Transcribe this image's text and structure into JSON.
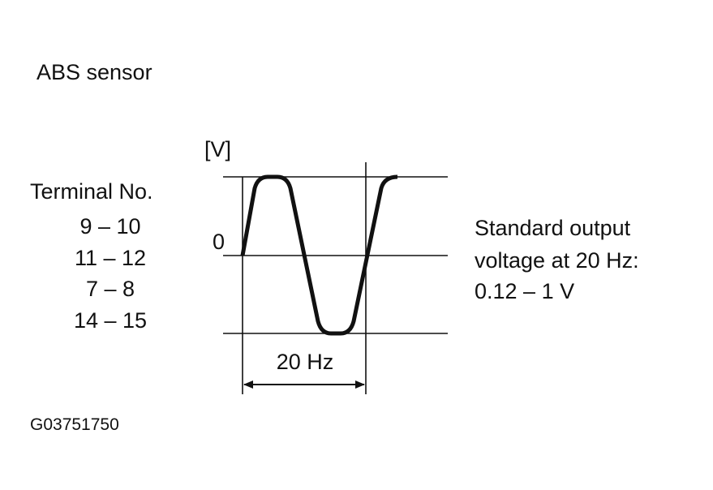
{
  "title": "ABS sensor",
  "terminals": {
    "header": "Terminal No.",
    "rows": [
      "9 – 10",
      "11 – 12",
      "7 – 8",
      "14 – 15"
    ]
  },
  "waveform": {
    "unit_label": "[V]",
    "zero_label": "0",
    "period_label": "20 Hz"
  },
  "note": {
    "lines": [
      "Standard output",
      "voltage at 20 Hz:",
      "0.12 – 1 V"
    ]
  },
  "figure_id": "G03751750"
}
